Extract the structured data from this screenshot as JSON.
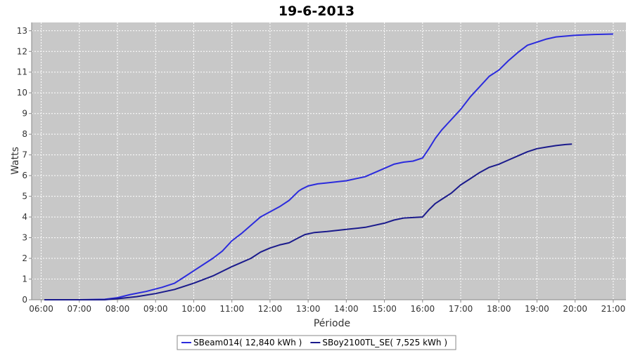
{
  "chart_data": {
    "type": "line",
    "title": "19-6-2013",
    "xlabel": "Période",
    "ylabel": "Watts",
    "x_tick_labels": [
      "06:00",
      "07:00",
      "08:00",
      "09:00",
      "10:00",
      "11:00",
      "12:00",
      "13:00",
      "14:00",
      "15:00",
      "16:00",
      "17:00",
      "18:00",
      "19:00",
      "20:00",
      "21:00"
    ],
    "xlim": [
      "05:45",
      "21:20"
    ],
    "ylim": [
      0,
      13.4
    ],
    "yticks": [
      0,
      1,
      2,
      3,
      4,
      5,
      6,
      7,
      8,
      9,
      10,
      11,
      12,
      13
    ],
    "grid": true,
    "legend_position": "bottom",
    "colors": {
      "plot_bg": "#c8c8c8",
      "grid": "#ffffff",
      "axis": "#888888"
    },
    "series": [
      {
        "name": "SBeam014( 12,840 kWh )",
        "color": "#2b2bdd",
        "x": [
          "06:05",
          "07:00",
          "07:40",
          "08:00",
          "08:20",
          "08:45",
          "09:10",
          "09:30",
          "09:45",
          "10:00",
          "10:15",
          "10:30",
          "10:45",
          "11:00",
          "11:15",
          "11:30",
          "11:45",
          "12:00",
          "12:15",
          "12:30",
          "12:45",
          "12:50",
          "13:00",
          "13:15",
          "13:30",
          "14:00",
          "14:30",
          "15:00",
          "15:15",
          "15:30",
          "15:45",
          "16:00",
          "16:10",
          "16:20",
          "16:30",
          "16:45",
          "17:00",
          "17:15",
          "17:30",
          "17:45",
          "18:00",
          "18:15",
          "18:30",
          "18:45",
          "19:00",
          "19:15",
          "19:30",
          "20:00",
          "20:30",
          "21:00"
        ],
        "values": [
          0,
          0,
          0.02,
          0.1,
          0.25,
          0.4,
          0.6,
          0.8,
          1.1,
          1.4,
          1.7,
          2.0,
          2.35,
          2.85,
          3.2,
          3.6,
          4.0,
          4.25,
          4.5,
          4.8,
          5.25,
          5.35,
          5.5,
          5.6,
          5.65,
          5.75,
          5.95,
          6.35,
          6.55,
          6.65,
          6.7,
          6.85,
          7.3,
          7.8,
          8.2,
          8.7,
          9.2,
          9.8,
          10.3,
          10.8,
          11.1,
          11.55,
          11.95,
          12.3,
          12.45,
          12.6,
          12.7,
          12.78,
          12.82,
          12.84
        ]
      },
      {
        "name": "SBoy2100TL_SE( 7,525 kWh )",
        "color": "#1a1a8c",
        "x": [
          "06:05",
          "07:00",
          "07:40",
          "08:00",
          "08:30",
          "09:00",
          "09:30",
          "10:00",
          "10:30",
          "11:00",
          "11:15",
          "11:30",
          "11:45",
          "12:00",
          "12:15",
          "12:30",
          "12:45",
          "12:55",
          "13:10",
          "13:30",
          "14:00",
          "14:30",
          "15:00",
          "15:15",
          "15:30",
          "16:00",
          "16:10",
          "16:20",
          "16:30",
          "16:45",
          "17:00",
          "17:15",
          "17:30",
          "17:45",
          "18:00",
          "18:15",
          "18:30",
          "18:45",
          "19:00",
          "19:15",
          "19:30",
          "19:45",
          "19:55"
        ],
        "values": [
          0,
          0,
          0,
          0.05,
          0.15,
          0.3,
          0.5,
          0.8,
          1.15,
          1.6,
          1.8,
          2.0,
          2.3,
          2.5,
          2.65,
          2.75,
          3.0,
          3.15,
          3.25,
          3.3,
          3.4,
          3.5,
          3.7,
          3.85,
          3.95,
          4.0,
          4.35,
          4.65,
          4.85,
          5.15,
          5.55,
          5.85,
          6.15,
          6.4,
          6.55,
          6.75,
          6.95,
          7.15,
          7.3,
          7.38,
          7.45,
          7.5,
          7.52
        ]
      }
    ]
  }
}
